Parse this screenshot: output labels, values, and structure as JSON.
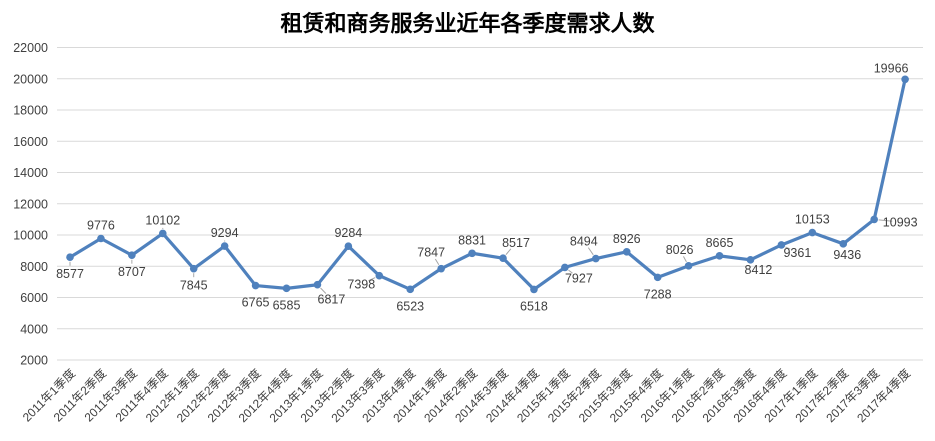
{
  "chart_data": {
    "type": "line",
    "title": "租赁和商务服务业近年各季度需求人数",
    "xlabel": "",
    "ylabel": "",
    "legend": "none",
    "grid": "horizontal",
    "ylim": [
      2000,
      22000
    ],
    "ytick_step": 2000,
    "ytick_labels": [
      "2000",
      "4000",
      "6000",
      "8000",
      "10000",
      "12000",
      "14000",
      "16000",
      "18000",
      "20000",
      "22000"
    ],
    "categories": [
      "2011年1季度",
      "2011年2季度",
      "2011年3季度",
      "2011年4季度",
      "2012年1季度",
      "2012年2季度",
      "2012年3季度",
      "2012年4季度",
      "2013年1季度",
      "2013年2季度",
      "2013年3季度",
      "2013年4季度",
      "2014年1季度",
      "2014年2季度",
      "2014年3季度",
      "2014年4季度",
      "2015年1季度",
      "2015年2季度",
      "2015年3季度",
      "2015年4季度",
      "2016年1季度",
      "2016年2季度",
      "2016年3季度",
      "2016年4季度",
      "2017年1季度",
      "2017年2季度",
      "2017年3季度",
      "2017年4季度"
    ],
    "values": [
      8577,
      9776,
      8707,
      10102,
      7845,
      9294,
      6765,
      6585,
      6817,
      9284,
      7398,
      6523,
      7847,
      8831,
      8517,
      6518,
      7927,
      8494,
      8926,
      7288,
      8026,
      8665,
      8412,
      9361,
      10153,
      9436,
      10993,
      19966
    ],
    "data_labels_visible": true,
    "colors": {
      "series": "#4F81BD",
      "gridline": "#D9D9D9",
      "axis_text": "#404040",
      "label_text": "#404040",
      "leader_line": "#A6A6A6",
      "background": "#FFFFFF",
      "title_text": "#000000"
    },
    "label_layout": {
      "pos": [
        "b",
        "a",
        "b",
        "a",
        "b",
        "a",
        "b",
        "b",
        "b",
        "a",
        "b",
        "b",
        "a",
        "a",
        "a",
        "b",
        "b",
        "a",
        "a",
        "b",
        "a",
        "a",
        "b",
        "b",
        "a",
        "b",
        "b",
        "a"
      ],
      "dx": {
        "9": 14,
        "11": -18,
        "13": -10,
        "15": 13,
        "17": 14,
        "18": -12,
        "21": -9,
        "23": 8,
        "24": 16,
        "26": 4,
        "27": 26,
        "28": -14
      },
      "dy": {
        "9": -2,
        "11": -8,
        "13": -3,
        "15": -2,
        "17": -6,
        "18": -4,
        "21": -3,
        "23": -7,
        "24": -9,
        "26": -6,
        "27": -14,
        "28": 2
      },
      "leaders": [
        1,
        3,
        4,
        5,
        6,
        9,
        11,
        13,
        15,
        17,
        18,
        21,
        23,
        24,
        27
      ]
    }
  }
}
